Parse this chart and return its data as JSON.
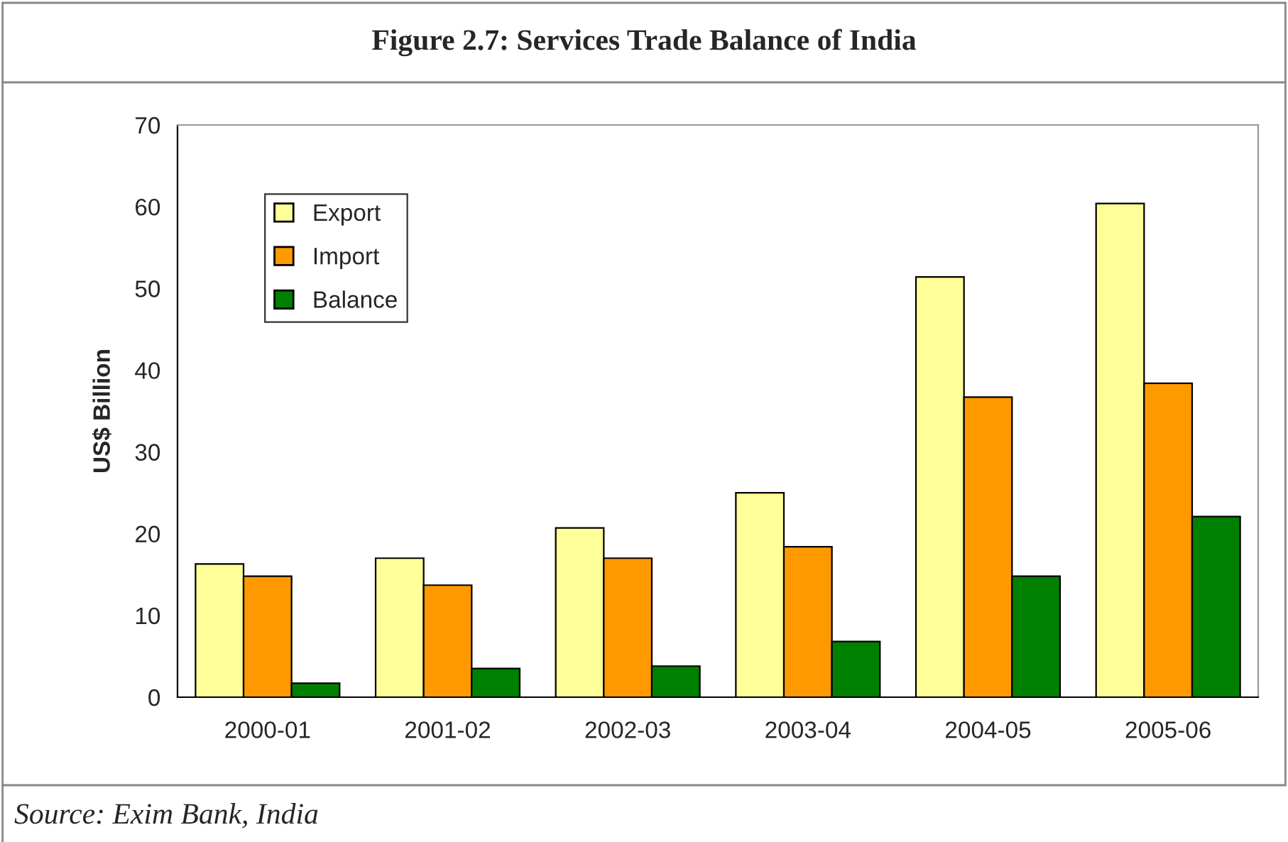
{
  "chart_data": {
    "type": "bar",
    "title": "Figure 2.7: Services Trade Balance of India",
    "ylabel": "US$ Billion",
    "categories": [
      "2000-01",
      "2001-02",
      "2002-03",
      "2003-04",
      "2004-05",
      "2005-06"
    ],
    "series": [
      {
        "name": "Export",
        "color": "#ffff99",
        "values": [
          16.3,
          17.0,
          20.7,
          25.0,
          51.4,
          60.4
        ]
      },
      {
        "name": "Import",
        "color": "#ff9900",
        "values": [
          14.8,
          13.7,
          17.0,
          18.4,
          36.7,
          38.4
        ]
      },
      {
        "name": "Balance",
        "color": "#008000",
        "values": [
          1.7,
          3.5,
          3.8,
          6.8,
          14.8,
          22.1
        ]
      }
    ],
    "ylim": [
      0,
      70
    ],
    "yticks": [
      0,
      10,
      20,
      30,
      40,
      50,
      60,
      70
    ],
    "grid": false,
    "legend": "top left",
    "annotations": [
      "Source: Exim Bank, India"
    ]
  }
}
